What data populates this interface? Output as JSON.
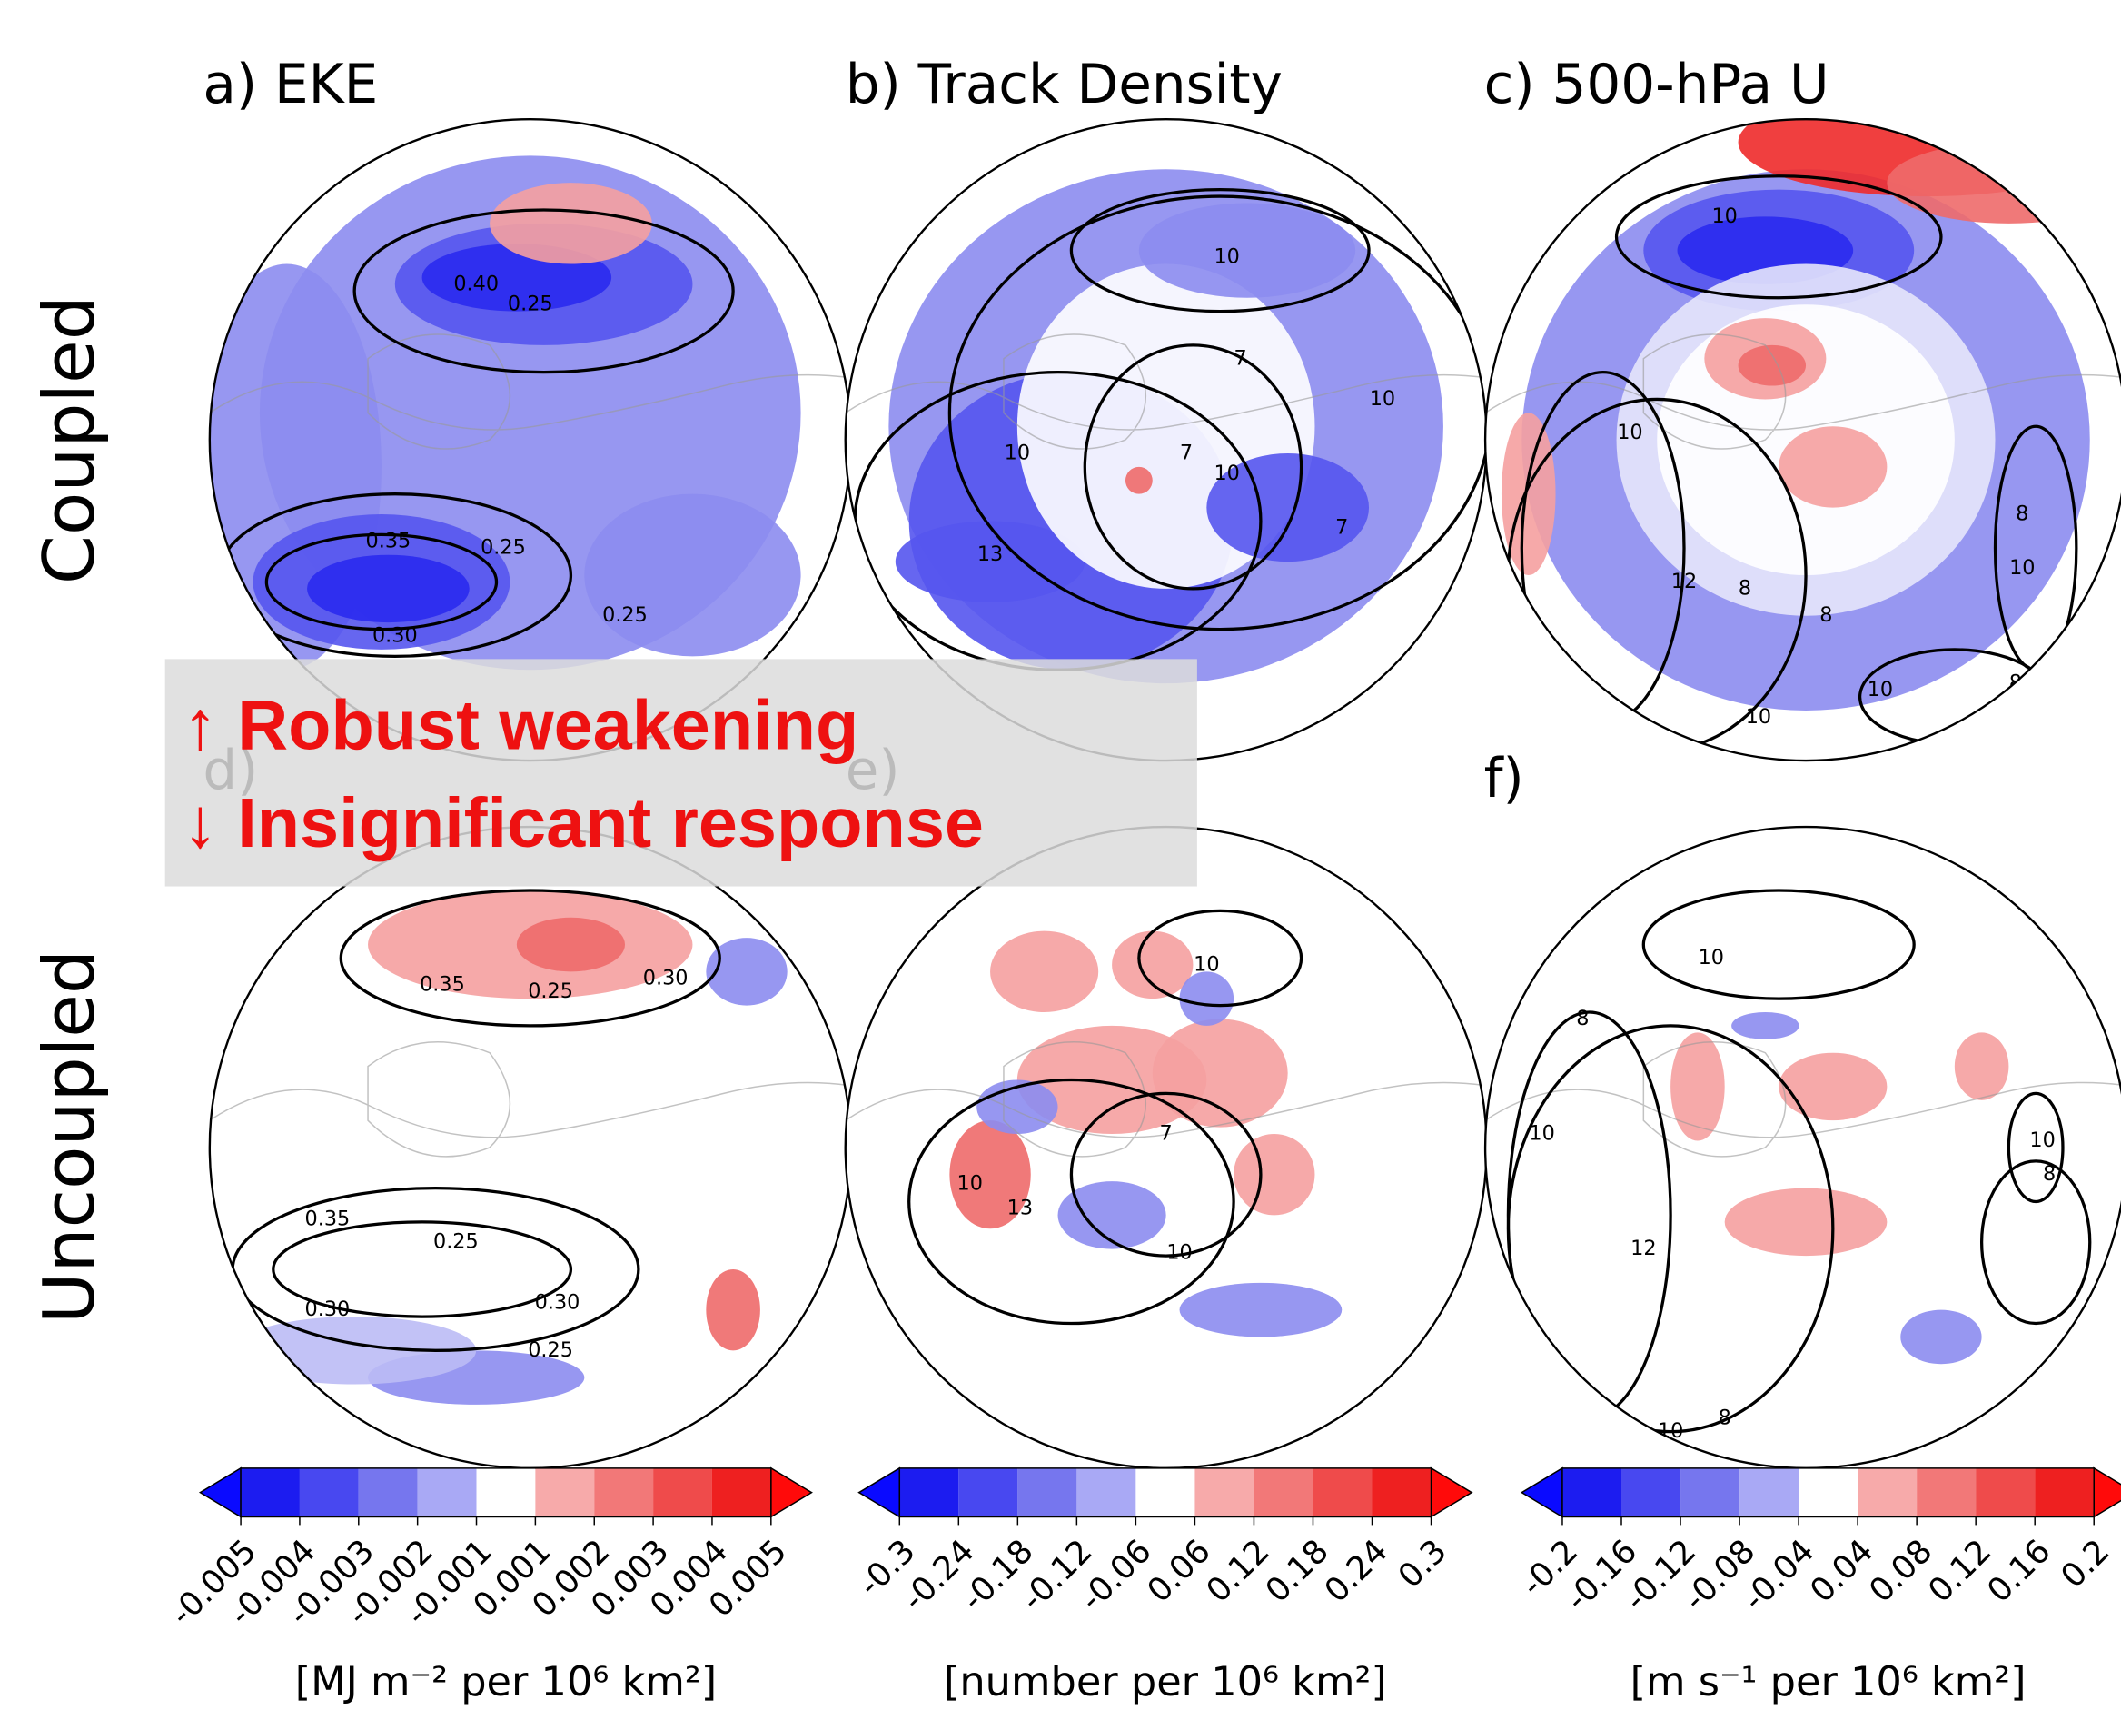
{
  "figure": {
    "row_labels": [
      "Coupled",
      "Uncoupled"
    ],
    "panels": [
      {
        "title": "a) EKE",
        "contour_labels": [
          "0.40",
          "0.25",
          "0.35",
          "0.25",
          "0.30",
          "0.25"
        ]
      },
      {
        "title": "b) Track Density",
        "contour_labels": [
          "10",
          "7",
          "10",
          "10",
          "7",
          "13",
          "10",
          "7"
        ]
      },
      {
        "title": "c) 500-hPa U",
        "contour_labels": [
          "10",
          "10",
          "12",
          "8",
          "8",
          "8",
          "10",
          "10",
          "10",
          "8"
        ]
      },
      {
        "title": "d)",
        "contour_labels": [
          "0.35",
          "0.25",
          "0.30",
          "0.35",
          "0.25",
          "0.30",
          "0.30",
          "0.25"
        ]
      },
      {
        "title": "e)",
        "contour_labels": [
          "10",
          "10",
          "13",
          "7",
          "10"
        ]
      },
      {
        "title": "f)",
        "contour_labels": [
          "10",
          "8",
          "10",
          "12",
          "10",
          "8",
          "10",
          "8"
        ]
      }
    ],
    "annotation": {
      "lines": [
        "↑ Robust weakening",
        "↓ Insignificant response"
      ],
      "color": "#ee1111"
    },
    "colorbars": [
      {
        "ticks": [
          -0.005,
          -0.004,
          -0.003,
          -0.002,
          -0.001,
          0.001,
          0.002,
          0.003,
          0.004,
          0.005
        ],
        "label": "[MJ m⁻² per 10⁶ km²]"
      },
      {
        "ticks": [
          -0.3,
          -0.24,
          -0.18,
          -0.12,
          -0.06,
          0.06,
          0.12,
          0.18,
          0.24,
          0.3
        ],
        "label": "[number per 10⁶ km²]"
      },
      {
        "ticks": [
          -0.2,
          -0.16,
          -0.12,
          -0.08,
          -0.04,
          0.04,
          0.08,
          0.12,
          0.16,
          0.2
        ],
        "label": "[m s⁻¹ per 10⁶ km²]"
      }
    ],
    "colorbar_colors": [
      "#1c1cf0",
      "#4848f0",
      "#7676ee",
      "#a9a9f5",
      "#ffffff",
      "#f7aaaa",
      "#f27878",
      "#ef4b4b",
      "#ee2020"
    ],
    "extend_colors": [
      "#0a0aff",
      "#ff0a0a"
    ]
  }
}
